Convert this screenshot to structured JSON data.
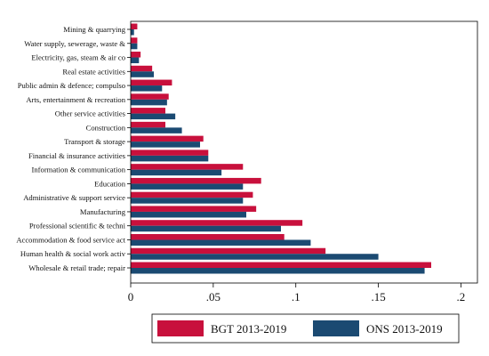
{
  "chart_data": {
    "type": "bar",
    "orientation": "horizontal",
    "title": "",
    "xlabel": "",
    "ylabel": "",
    "xlim": [
      0,
      0.21
    ],
    "xticks": [
      0,
      0.05,
      0.1,
      0.15,
      0.2
    ],
    "xtick_labels": [
      "0",
      ".05",
      ".1",
      ".15",
      ".2"
    ],
    "grid": false,
    "legend_position": "bottom",
    "categories": [
      "Mining & quarrying",
      "Water supply, sewerage, waste &",
      "Electricity, gas, steam & air co",
      "Real estate activities",
      "Public admin & defence; compulso",
      "Arts, entertainment & recreation",
      "Other service activities",
      "Construction",
      "Transport & storage",
      "Financial & insurance activities",
      "Information & communication",
      "Education",
      "Administrative & support service",
      "Manufacturing",
      "Professional scientific & techni",
      "Accommodation & food service act",
      "Human health & social work activ",
      "Wholesale & retail trade; repair"
    ],
    "series": [
      {
        "name": "BGT 2013-2019",
        "color": "#c8103c",
        "values": [
          0.004,
          0.004,
          0.006,
          0.013,
          0.025,
          0.023,
          0.021,
          0.021,
          0.044,
          0.047,
          0.068,
          0.079,
          0.074,
          0.076,
          0.104,
          0.093,
          0.118,
          0.182
        ]
      },
      {
        "name": "ONS 2013-2019",
        "color": "#1b4a72",
        "values": [
          0.002,
          0.004,
          0.005,
          0.014,
          0.019,
          0.022,
          0.027,
          0.031,
          0.042,
          0.047,
          0.055,
          0.068,
          0.068,
          0.07,
          0.091,
          0.109,
          0.15,
          0.178
        ]
      }
    ]
  }
}
